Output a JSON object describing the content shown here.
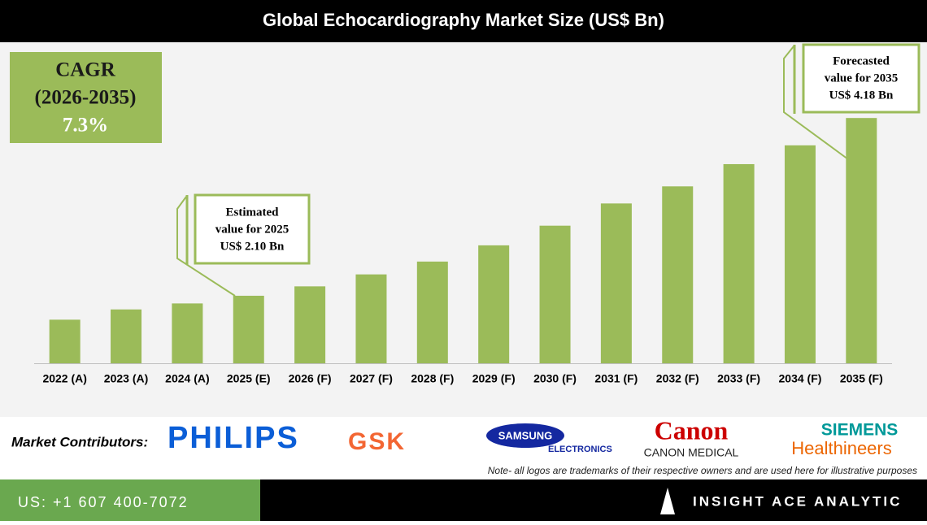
{
  "chart_data": {
    "type": "bar",
    "title": "Global Echocardiography Market Size (US$ Bn)",
    "categories": [
      "2022 (A)",
      "2023 (A)",
      "2024 (A)",
      "2025 (E)",
      "2026 (F)",
      "2027 (F)",
      "2028 (F)",
      "2029 (F)",
      "2030 (F)",
      "2031 (F)",
      "2032 (F)",
      "2033 (F)",
      "2034 (F)",
      "2035 (F)"
    ],
    "values": [
      1.82,
      1.94,
      2.01,
      2.1,
      2.21,
      2.35,
      2.5,
      2.69,
      2.92,
      3.18,
      3.38,
      3.64,
      3.86,
      4.18
    ],
    "color": "#9bbb59",
    "ylim": [
      1.31,
      4.99
    ],
    "annotations": [
      {
        "lines": [
          "Estimated",
          "value for 2025",
          "US$ 2.10 Bn"
        ]
      },
      {
        "lines": [
          "Forecasted",
          "value for 2035",
          "US$ 4.18 Bn"
        ]
      }
    ]
  },
  "cagr_box": {
    "lines": [
      "CAGR",
      "(2026-2035)",
      "7.3%"
    ]
  },
  "contributors": {
    "label": "Market Contributors:",
    "logos": [
      "PHILIPS",
      "GSK",
      "SAMSUNG",
      "ELECTRONICS",
      "Canon",
      "CANON MEDICAL",
      "SIEMENS",
      "Healthineers"
    ],
    "note": "Note- all logos are trademarks of their respective owners and are used here for illustrative purposes"
  },
  "footer": {
    "phone": "US: +1 607 400-7072",
    "brand": "INSIGHT ACE ANALYTIC"
  }
}
